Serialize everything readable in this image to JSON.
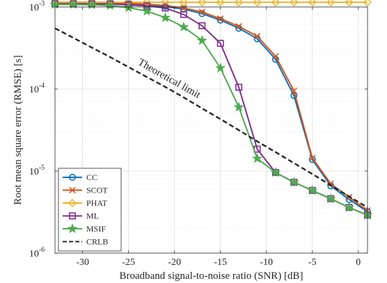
{
  "chart_data": {
    "type": "line",
    "xlabel": "Broadband signal-to-noise ratio (SNR) [dB]",
    "ylabel": "Root mean square error (RMSE) [s]",
    "xlim": [
      -33,
      1
    ],
    "ylim": [
      1e-06,
      0.001
    ],
    "yscale": "log",
    "grid": true,
    "legend_position": "bottom-left",
    "x_ticks": [
      -30,
      -25,
      -20,
      -15,
      -10,
      -5,
      0
    ],
    "x_tick_labels": [
      "-30",
      "-25",
      "-20",
      "-15",
      "-10",
      "-5",
      "0"
    ],
    "y_ticks": [
      1e-06,
      1e-05,
      0.0001,
      0.001
    ],
    "y_tick_labels": [
      {
        "base": "10",
        "exp": "-6"
      },
      {
        "base": "10",
        "exp": "-5"
      },
      {
        "base": "10",
        "exp": "-4"
      },
      {
        "base": "10",
        "exp": "-3"
      }
    ],
    "annotation": "Theoretical limit",
    "series": [
      {
        "name": "CC",
        "color": "#0072BD",
        "marker": "circle",
        "dash": "solid",
        "x": [
          -33,
          -31,
          -29,
          -27,
          -25,
          -23,
          -21,
          -19,
          -17,
          -15,
          -13,
          -11,
          -9,
          -7,
          -5,
          -3,
          -1,
          1
        ],
        "y": [
          0.00112,
          0.00112,
          0.00112,
          0.00111,
          0.00109,
          0.00106,
          0.00101,
          0.00094,
          0.00083,
          0.00069,
          0.00055,
          0.00041,
          0.00023,
          8.3e-05,
          1.38e-05,
          6.6e-06,
          4.5e-06,
          3.2e-06
        ]
      },
      {
        "name": "SCOT",
        "color": "#D95319",
        "marker": "x",
        "dash": "solid",
        "x": [
          -33,
          -31,
          -29,
          -27,
          -25,
          -23,
          -21,
          -19,
          -17,
          -15,
          -13,
          -11,
          -9,
          -7,
          -5,
          -3,
          -1,
          1
        ],
        "y": [
          0.00114,
          0.00114,
          0.00114,
          0.00113,
          0.00111,
          0.00108,
          0.00104,
          0.00097,
          0.00087,
          0.00072,
          0.00058,
          0.00044,
          0.00025,
          9.5e-05,
          1.44e-05,
          7e-06,
          4.8e-06,
          3.3e-06
        ]
      },
      {
        "name": "PHAT",
        "color": "#EDB120",
        "marker": "diamond",
        "dash": "solid",
        "x": [
          -33,
          -31,
          -29,
          -27,
          -25,
          -23,
          -21,
          -19,
          -17,
          -15,
          -13,
          -11,
          -9,
          -7,
          -5,
          -3,
          -1,
          1
        ],
        "y": [
          0.00114,
          0.00114,
          0.00114,
          0.00114,
          0.00114,
          0.00114,
          0.00114,
          0.00114,
          0.00114,
          0.00114,
          0.00114,
          0.00114,
          0.00114,
          0.00114,
          0.00114,
          0.00114,
          0.00114,
          0.00114
        ]
      },
      {
        "name": "ML",
        "color": "#7E2F8E",
        "marker": "square",
        "dash": "solid",
        "x": [
          -33,
          -31,
          -29,
          -27,
          -25,
          -23,
          -21,
          -19,
          -17,
          -15,
          -13,
          -11,
          -9,
          -7,
          -5,
          -3,
          -1,
          1
        ],
        "y": [
          0.00109,
          0.00109,
          0.00109,
          0.00108,
          0.00106,
          0.00103,
          0.00097,
          0.00081,
          0.00059,
          0.00036,
          0.000105,
          1.85e-05,
          9.6e-06,
          7.3e-06,
          5.8e-06,
          4.6e-06,
          3.6e-06,
          2.9e-06
        ]
      },
      {
        "name": "MSIF",
        "color": "#4DAA4D",
        "marker": "star",
        "dash": "solid",
        "x": [
          -33,
          -31,
          -29,
          -27,
          -25,
          -23,
          -21,
          -19,
          -17,
          -15,
          -13,
          -11,
          -9,
          -7,
          -5,
          -3,
          -1,
          1
        ],
        "y": [
          0.00107,
          0.00107,
          0.00106,
          0.00104,
          0.00098,
          0.00089,
          0.00074,
          0.00057,
          0.00039,
          0.00018,
          6e-05,
          1.42e-05,
          9.6e-06,
          7.3e-06,
          5.8e-06,
          4.6e-06,
          3.6e-06,
          2.9e-06
        ]
      },
      {
        "name": "CRLB",
        "color": "#262626",
        "marker": "none",
        "dash": "dashed",
        "x": [
          -33,
          -31,
          -29,
          -27,
          -25,
          -23,
          -21,
          -19,
          -17,
          -15,
          -13,
          -11,
          -9,
          -7,
          -5,
          -3,
          -1,
          1
        ],
        "y": [
          0.00055,
          0.00042,
          0.00032,
          0.000245,
          0.000185,
          0.00014,
          0.000106,
          7.9e-05,
          5.8e-05,
          4.3e-05,
          3.15e-05,
          2.3e-05,
          1.7e-05,
          1.25e-05,
          9.2e-06,
          6.7e-06,
          4.9e-06,
          3.6e-06
        ]
      }
    ]
  }
}
